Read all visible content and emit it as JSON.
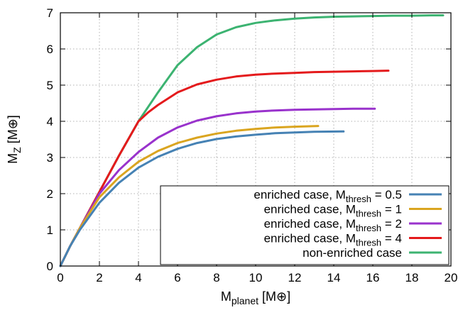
{
  "chart_data": {
    "type": "line",
    "xlabel": {
      "main": "M",
      "sub": "planet",
      "unit": " [M⊕]"
    },
    "ylabel": {
      "main": "M",
      "sub": "Z",
      "unit": " [M⊕]"
    },
    "xlim": [
      0,
      20
    ],
    "ylim": [
      0,
      7
    ],
    "xticks": [
      0,
      2,
      4,
      6,
      8,
      10,
      12,
      14,
      16,
      18,
      20
    ],
    "yticks": [
      0,
      1,
      2,
      3,
      4,
      5,
      6,
      7
    ],
    "grid": true,
    "legend_position": "bottom-right",
    "series": [
      {
        "name": "non-enriched case",
        "legend": {
          "prefix": "non-enriched case",
          "sub": "",
          "suffix": ""
        },
        "color": "#3cb371",
        "x": [
          0,
          0.5,
          1,
          2,
          3,
          4,
          5,
          6,
          7,
          8,
          9,
          10,
          11,
          12,
          13,
          14,
          15,
          16,
          17,
          18,
          19,
          19.6
        ],
        "y": [
          0,
          0.55,
          1.05,
          2.05,
          3.05,
          4.0,
          4.8,
          5.55,
          6.05,
          6.4,
          6.6,
          6.72,
          6.79,
          6.84,
          6.87,
          6.89,
          6.9,
          6.91,
          6.92,
          6.92,
          6.93,
          6.93
        ]
      },
      {
        "name": "enriched case, Mthresh = 4",
        "legend": {
          "prefix": "enriched case, M",
          "sub": "thresh",
          "suffix": " = 4"
        },
        "color": "#e41a1c",
        "x": [
          0,
          0.5,
          1,
          2,
          3,
          4,
          4.5,
          5,
          6,
          7,
          8,
          9,
          10,
          11,
          12,
          13,
          14,
          15,
          16,
          16.8
        ],
        "y": [
          0,
          0.55,
          1.05,
          2.05,
          3.05,
          4.0,
          4.25,
          4.45,
          4.8,
          5.02,
          5.15,
          5.24,
          5.29,
          5.32,
          5.34,
          5.36,
          5.37,
          5.38,
          5.39,
          5.4
        ]
      },
      {
        "name": "enriched case, Mthresh = 2",
        "legend": {
          "prefix": "enriched case, M",
          "sub": "thresh",
          "suffix": " = 2"
        },
        "color": "#9932cc",
        "x": [
          0,
          0.5,
          1,
          2,
          3,
          4,
          5,
          6,
          7,
          8,
          9,
          10,
          11,
          12,
          13,
          14,
          15,
          16.1
        ],
        "y": [
          0,
          0.55,
          1.05,
          2.0,
          2.65,
          3.15,
          3.55,
          3.83,
          4.02,
          4.14,
          4.22,
          4.27,
          4.3,
          4.32,
          4.33,
          4.34,
          4.35,
          4.35
        ]
      },
      {
        "name": "enriched case, Mthresh = 1",
        "legend": {
          "prefix": "enriched case, M",
          "sub": "thresh",
          "suffix": " = 1"
        },
        "color": "#daa520",
        "x": [
          0,
          0.5,
          1,
          2,
          3,
          4,
          5,
          6,
          7,
          8,
          9,
          10,
          11,
          12,
          13.2
        ],
        "y": [
          0,
          0.55,
          1.05,
          1.9,
          2.45,
          2.88,
          3.18,
          3.4,
          3.55,
          3.66,
          3.74,
          3.79,
          3.83,
          3.85,
          3.87
        ]
      },
      {
        "name": "enriched case, Mthresh = 0.5",
        "legend": {
          "prefix": "enriched case, M",
          "sub": "thresh",
          "suffix": " = 0.5"
        },
        "color": "#4682b4",
        "x": [
          0,
          0.5,
          1,
          2,
          3,
          4,
          5,
          6,
          7,
          8,
          9,
          10,
          11,
          12,
          13,
          14.5
        ],
        "y": [
          0,
          0.55,
          1.0,
          1.75,
          2.3,
          2.72,
          3.02,
          3.24,
          3.4,
          3.51,
          3.58,
          3.63,
          3.67,
          3.69,
          3.71,
          3.72
        ]
      }
    ],
    "legend_order": [
      "enriched case, Mthresh = 0.5",
      "enriched case, Mthresh = 1",
      "enriched case, Mthresh = 2",
      "enriched case, Mthresh = 4",
      "non-enriched case"
    ]
  }
}
